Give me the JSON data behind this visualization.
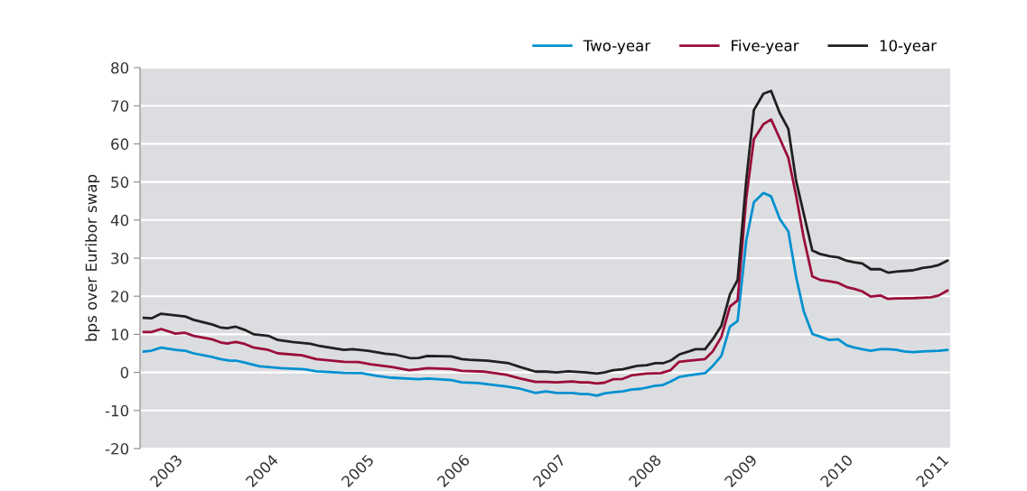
{
  "chart_data": {
    "type": "line",
    "ylabel": "bps over Euribor swap",
    "xlim": [
      2002.63,
      2011.09
    ],
    "xticks": [
      {
        "value": 2003,
        "label": "2003"
      },
      {
        "value": 2004,
        "label": "2004"
      },
      {
        "value": 2005,
        "label": "2005"
      },
      {
        "value": 2006,
        "label": "2006"
      },
      {
        "value": 2007,
        "label": "2007"
      },
      {
        "value": 2008,
        "label": "2008"
      },
      {
        "value": 2009,
        "label": "2009"
      },
      {
        "value": 2010,
        "label": "2010"
      },
      {
        "value": 2011,
        "label": "2011"
      }
    ],
    "ylim": [
      -20,
      80
    ],
    "yticks": [
      -20,
      -10,
      0,
      10,
      20,
      30,
      40,
      50,
      60,
      70,
      80
    ],
    "grid": "y",
    "legend": "top right",
    "marker": "none",
    "line_style": "solid",
    "series": [
      {
        "name": "Two-year",
        "color": "#0091d0",
        "x": [
          2002.67,
          2002.75,
          2002.85,
          2003.0,
          2003.1,
          2003.19,
          2003.38,
          2003.47,
          2003.57,
          2003.63,
          2003.72,
          2003.88,
          2003.97,
          2004.1,
          2004.35,
          2004.47,
          2004.76,
          2004.94,
          2005.1,
          2005.26,
          2005.54,
          2005.63,
          2005.88,
          2005.99,
          2006.16,
          2006.35,
          2006.45,
          2006.6,
          2006.76,
          2006.87,
          2006.98,
          2007.14,
          2007.24,
          2007.31,
          2007.4,
          2007.48,
          2007.57,
          2007.67,
          2007.76,
          2007.86,
          2008.01,
          2008.09,
          2008.17,
          2008.26,
          2008.36,
          2008.53,
          2008.61,
          2008.7,
          2008.79,
          2008.87,
          2008.96,
          2009.04,
          2009.14,
          2009.22,
          2009.31,
          2009.4,
          2009.48,
          2009.56,
          2009.65,
          2009.73,
          2009.83,
          2009.92,
          2010.01,
          2010.09,
          2010.17,
          2010.26,
          2010.36,
          2010.44,
          2010.53,
          2010.61,
          2010.7,
          2010.8,
          2010.97,
          2011.06
        ],
        "values": [
          5.5,
          5.7,
          6.5,
          5.9,
          5.7,
          5.0,
          4.1,
          3.5,
          3.1,
          3.1,
          2.6,
          1.6,
          1.4,
          1.1,
          0.8,
          0.3,
          -0.1,
          -0.2,
          -0.9,
          -1.4,
          -1.8,
          -1.6,
          -2.0,
          -2.6,
          -2.8,
          -3.4,
          -3.7,
          -4.3,
          -5.4,
          -5.0,
          -5.4,
          -5.4,
          -5.7,
          -5.7,
          -6.1,
          -5.5,
          -5.2,
          -5.0,
          -4.5,
          -4.3,
          -3.5,
          -3.3,
          -2.4,
          -1.2,
          -0.8,
          -0.2,
          1.7,
          4.3,
          12.0,
          13.5,
          34.6,
          44.7,
          47.1,
          46.2,
          40.3,
          37.0,
          25.2,
          16.1,
          10.1,
          9.4,
          8.5,
          8.7,
          7.1,
          6.5,
          6.1,
          5.7,
          6.1,
          6.1,
          5.9,
          5.5,
          5.3,
          5.5,
          5.7,
          5.9
        ]
      },
      {
        "name": "Five-year",
        "color": "#9b0d3a",
        "x": [
          2002.67,
          2002.75,
          2002.85,
          2003.0,
          2003.1,
          2003.19,
          2003.38,
          2003.47,
          2003.54,
          2003.63,
          2003.72,
          2003.82,
          2003.97,
          2004.07,
          2004.32,
          2004.47,
          2004.76,
          2004.91,
          2005.04,
          2005.26,
          2005.44,
          2005.54,
          2005.63,
          2005.88,
          2005.99,
          2006.23,
          2006.45,
          2006.6,
          2006.76,
          2006.87,
          2006.98,
          2007.14,
          2007.23,
          2007.31,
          2007.4,
          2007.48,
          2007.57,
          2007.67,
          2007.76,
          2007.92,
          2008.07,
          2008.17,
          2008.26,
          2008.36,
          2008.53,
          2008.61,
          2008.7,
          2008.79,
          2008.87,
          2008.96,
          2009.04,
          2009.14,
          2009.22,
          2009.31,
          2009.4,
          2009.48,
          2009.56,
          2009.65,
          2009.73,
          2009.83,
          2009.92,
          2010.01,
          2010.09,
          2010.17,
          2010.26,
          2010.36,
          2010.44,
          2010.53,
          2010.7,
          2010.89,
          2010.97,
          2011.06
        ],
        "values": [
          10.6,
          10.6,
          11.4,
          10.2,
          10.4,
          9.6,
          8.7,
          7.9,
          7.6,
          8.0,
          7.5,
          6.5,
          5.9,
          5.0,
          4.5,
          3.5,
          2.8,
          2.7,
          2.1,
          1.4,
          0.6,
          0.8,
          1.1,
          0.9,
          0.4,
          0.2,
          -0.6,
          -1.6,
          -2.5,
          -2.5,
          -2.6,
          -2.4,
          -2.6,
          -2.6,
          -2.9,
          -2.7,
          -1.8,
          -1.7,
          -0.8,
          -0.3,
          -0.2,
          0.6,
          2.8,
          3.1,
          3.5,
          5.5,
          9.3,
          17.3,
          18.9,
          45.7,
          61.2,
          65.2,
          66.4,
          61.4,
          56.3,
          46.5,
          35.4,
          25.2,
          24.3,
          23.9,
          23.5,
          22.4,
          21.9,
          21.3,
          19.9,
          20.2,
          19.3,
          19.4,
          19.5,
          19.7,
          20.2,
          21.5
        ]
      },
      {
        "name": "10-year",
        "color": "#231f20",
        "x": [
          2002.67,
          2002.75,
          2002.85,
          2003.1,
          2003.19,
          2003.38,
          2003.47,
          2003.54,
          2003.63,
          2003.72,
          2003.82,
          2003.97,
          2004.07,
          2004.22,
          2004.41,
          2004.51,
          2004.76,
          2004.85,
          2005.01,
          2005.19,
          2005.29,
          2005.46,
          2005.54,
          2005.63,
          2005.88,
          2005.99,
          2006.07,
          2006.26,
          2006.48,
          2006.6,
          2006.76,
          2006.87,
          2006.98,
          2007.1,
          2007.29,
          2007.4,
          2007.48,
          2007.57,
          2007.67,
          2007.82,
          2007.92,
          2008.01,
          2008.09,
          2008.17,
          2008.26,
          2008.36,
          2008.43,
          2008.53,
          2008.61,
          2008.7,
          2008.79,
          2008.87,
          2008.96,
          2009.04,
          2009.14,
          2009.22,
          2009.31,
          2009.4,
          2009.48,
          2009.56,
          2009.65,
          2009.73,
          2009.83,
          2009.92,
          2010.01,
          2010.09,
          2010.17,
          2010.26,
          2010.36,
          2010.44,
          2010.53,
          2010.7,
          2010.8,
          2010.89,
          2010.97,
          2011.06
        ],
        "values": [
          14.3,
          14.2,
          15.4,
          14.7,
          13.8,
          12.6,
          11.8,
          11.6,
          12.0,
          11.2,
          10.0,
          9.6,
          8.5,
          8.0,
          7.5,
          6.9,
          5.9,
          6.1,
          5.7,
          4.9,
          4.7,
          3.7,
          3.8,
          4.3,
          4.2,
          3.5,
          3.3,
          3.1,
          2.4,
          1.4,
          0.2,
          0.2,
          0.0,
          0.3,
          0.0,
          -0.3,
          0.0,
          0.6,
          0.8,
          1.7,
          1.9,
          2.4,
          2.4,
          3.1,
          4.7,
          5.5,
          6.1,
          6.1,
          8.7,
          12.2,
          20.5,
          24.3,
          50.4,
          68.9,
          73.2,
          73.9,
          68.1,
          63.9,
          50.4,
          41.7,
          32.0,
          31.1,
          30.5,
          30.2,
          29.3,
          28.9,
          28.6,
          27.1,
          27.1,
          26.2,
          26.5,
          26.8,
          27.4,
          27.7,
          28.2,
          29.3
        ]
      }
    ]
  }
}
